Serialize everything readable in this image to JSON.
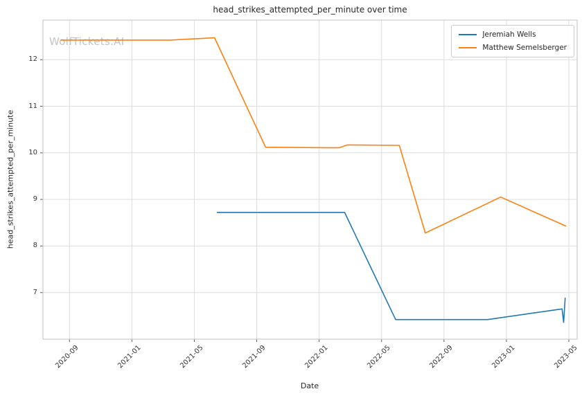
{
  "watermark": "WolfTickets.AI",
  "chart_data": {
    "type": "line",
    "title": "head_strikes_attempted_per_minute over time",
    "xlabel": "Date",
    "ylabel": "head_strikes_attempted_per_minute",
    "x_ticks": [
      "2020-09",
      "2021-01",
      "2021-05",
      "2021-09",
      "2022-01",
      "2022-05",
      "2022-09",
      "2023-01",
      "2023-05"
    ],
    "y_ticks": [
      7,
      8,
      9,
      10,
      11,
      12
    ],
    "xlim": [
      "2020-07-10",
      "2023-05-17"
    ],
    "ylim": [
      6.0,
      12.85
    ],
    "grid": true,
    "legend_position": "upper right",
    "colors": {
      "grid": "#dddddd",
      "frame": "#cccccc",
      "tick": "#555555"
    },
    "series": [
      {
        "name": "Jeremiah Wells",
        "color": "#1f77b4",
        "points": [
          [
            "2021-06-15",
            8.72
          ],
          [
            "2021-10-01",
            8.72
          ],
          [
            "2022-02-20",
            8.72
          ],
          [
            "2022-05-28",
            6.42
          ],
          [
            "2022-08-15",
            6.42
          ],
          [
            "2022-11-25",
            6.42
          ],
          [
            "2023-04-18",
            6.65
          ],
          [
            "2023-04-21",
            6.36
          ],
          [
            "2023-04-24",
            6.88
          ]
        ]
      },
      {
        "name": "Matthew Semelsberger",
        "color": "#ff7f0e",
        "points": [
          [
            "2020-08-15",
            12.42
          ],
          [
            "2020-12-15",
            12.42
          ],
          [
            "2021-03-15",
            12.42
          ],
          [
            "2021-06-10",
            12.47
          ],
          [
            "2021-09-18",
            10.12
          ],
          [
            "2022-01-15",
            10.11
          ],
          [
            "2022-02-10",
            10.11
          ],
          [
            "2022-02-25",
            10.17
          ],
          [
            "2022-06-05",
            10.16
          ],
          [
            "2022-07-25",
            8.28
          ],
          [
            "2022-12-20",
            9.05
          ],
          [
            "2023-04-25",
            8.43
          ]
        ]
      }
    ]
  }
}
